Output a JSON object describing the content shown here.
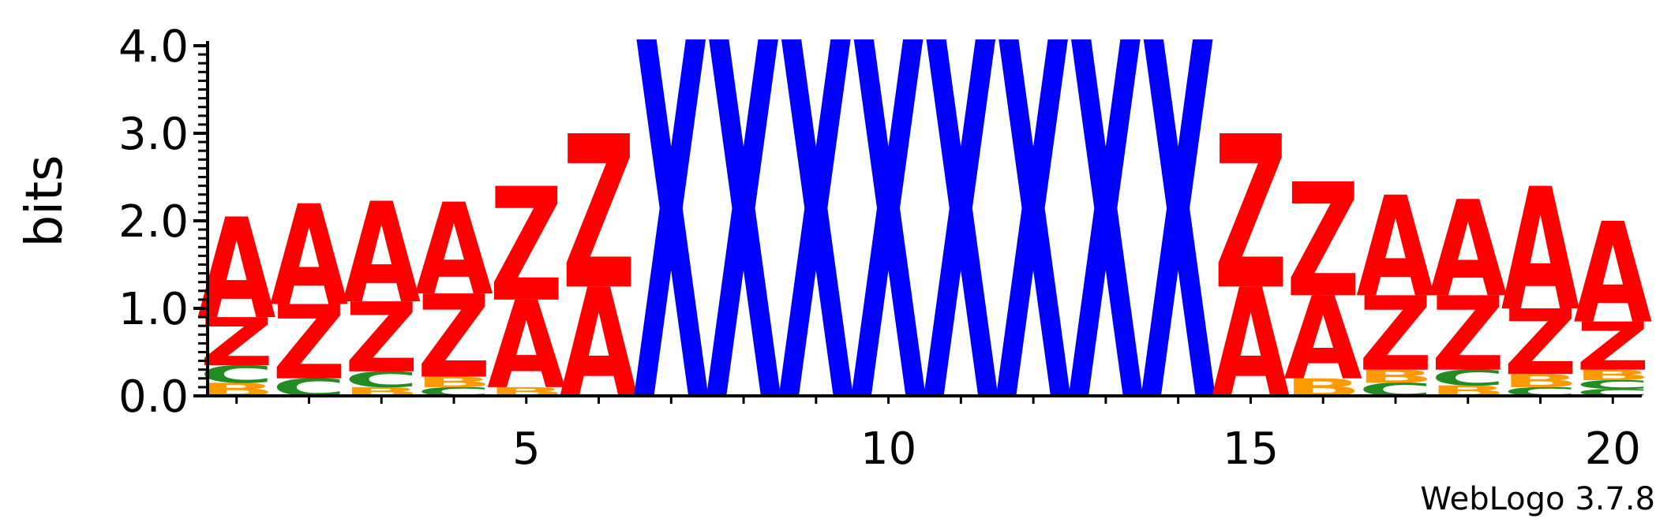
{
  "chart_data": {
    "type": "sequence_logo",
    "ylabel": "bits",
    "ylim": [
      0,
      4.0
    ],
    "y_ticks": [
      "0.0",
      "1.0",
      "2.0",
      "3.0",
      "4.0"
    ],
    "x_range": [
      0.6,
      20.4
    ],
    "x_ticks": [
      "5",
      "10",
      "15",
      "20"
    ],
    "credit": "WebLogo 3.7.8",
    "colors": {
      "A": "#ff0000",
      "Z": "#ff0000",
      "X": "#0000ff",
      "C": "#228b22",
      "B": "#ff9900"
    },
    "positions": [
      {
        "pos": 1,
        "stack": [
          {
            "letter": "B",
            "bits": 0.15
          },
          {
            "letter": "C",
            "bits": 0.2
          },
          {
            "letter": "Z",
            "bits": 0.55
          },
          {
            "letter": "A",
            "bits": 1.15
          }
        ]
      },
      {
        "pos": 2,
        "stack": [
          {
            "letter": "C",
            "bits": 0.2
          },
          {
            "letter": "Z",
            "bits": 0.85
          },
          {
            "letter": "A",
            "bits": 1.15
          }
        ]
      },
      {
        "pos": 3,
        "stack": [
          {
            "letter": "B",
            "bits": 0.1
          },
          {
            "letter": "C",
            "bits": 0.18
          },
          {
            "letter": "Z",
            "bits": 0.8
          },
          {
            "letter": "A",
            "bits": 1.15
          }
        ]
      },
      {
        "pos": 4,
        "stack": [
          {
            "letter": "C",
            "bits": 0.1
          },
          {
            "letter": "B",
            "bits": 0.12
          },
          {
            "letter": "Z",
            "bits": 0.95
          },
          {
            "letter": "A",
            "bits": 1.05
          }
        ]
      },
      {
        "pos": 5,
        "stack": [
          {
            "letter": "B",
            "bits": 0.1
          },
          {
            "letter": "A",
            "bits": 1.0
          },
          {
            "letter": "Z",
            "bits": 1.3
          }
        ]
      },
      {
        "pos": 6,
        "stack": [
          {
            "letter": "A",
            "bits": 1.25
          },
          {
            "letter": "Z",
            "bits": 1.75
          }
        ]
      },
      {
        "pos": 7,
        "stack": [
          {
            "letter": "X",
            "bits": 4.2
          }
        ]
      },
      {
        "pos": 8,
        "stack": [
          {
            "letter": "X",
            "bits": 4.2
          }
        ]
      },
      {
        "pos": 9,
        "stack": [
          {
            "letter": "X",
            "bits": 4.2
          }
        ]
      },
      {
        "pos": 10,
        "stack": [
          {
            "letter": "X",
            "bits": 4.2
          }
        ]
      },
      {
        "pos": 11,
        "stack": [
          {
            "letter": "X",
            "bits": 4.2
          }
        ]
      },
      {
        "pos": 12,
        "stack": [
          {
            "letter": "X",
            "bits": 4.2
          }
        ]
      },
      {
        "pos": 13,
        "stack": [
          {
            "letter": "X",
            "bits": 4.2
          }
        ]
      },
      {
        "pos": 14,
        "stack": [
          {
            "letter": "X",
            "bits": 4.2
          }
        ]
      },
      {
        "pos": 15,
        "stack": [
          {
            "letter": "A",
            "bits": 1.25
          },
          {
            "letter": "Z",
            "bits": 1.75
          }
        ]
      },
      {
        "pos": 16,
        "stack": [
          {
            "letter": "B",
            "bits": 0.2
          },
          {
            "letter": "A",
            "bits": 0.95
          },
          {
            "letter": "Z",
            "bits": 1.3
          }
        ]
      },
      {
        "pos": 17,
        "stack": [
          {
            "letter": "C",
            "bits": 0.15
          },
          {
            "letter": "B",
            "bits": 0.15
          },
          {
            "letter": "Z",
            "bits": 0.85
          },
          {
            "letter": "A",
            "bits": 1.15
          }
        ]
      },
      {
        "pos": 18,
        "stack": [
          {
            "letter": "B",
            "bits": 0.12
          },
          {
            "letter": "C",
            "bits": 0.18
          },
          {
            "letter": "Z",
            "bits": 0.85
          },
          {
            "letter": "A",
            "bits": 1.1
          }
        ]
      },
      {
        "pos": 19,
        "stack": [
          {
            "letter": "C",
            "bits": 0.1
          },
          {
            "letter": "B",
            "bits": 0.15
          },
          {
            "letter": "Z",
            "bits": 0.75
          },
          {
            "letter": "A",
            "bits": 1.4
          }
        ]
      },
      {
        "pos": 20,
        "stack": [
          {
            "letter": "C",
            "bits": 0.08
          },
          {
            "letter": "C",
            "bits": 0.1
          },
          {
            "letter": "B",
            "bits": 0.12
          },
          {
            "letter": "Z",
            "bits": 0.55
          },
          {
            "letter": "A",
            "bits": 1.15
          }
        ]
      }
    ]
  }
}
